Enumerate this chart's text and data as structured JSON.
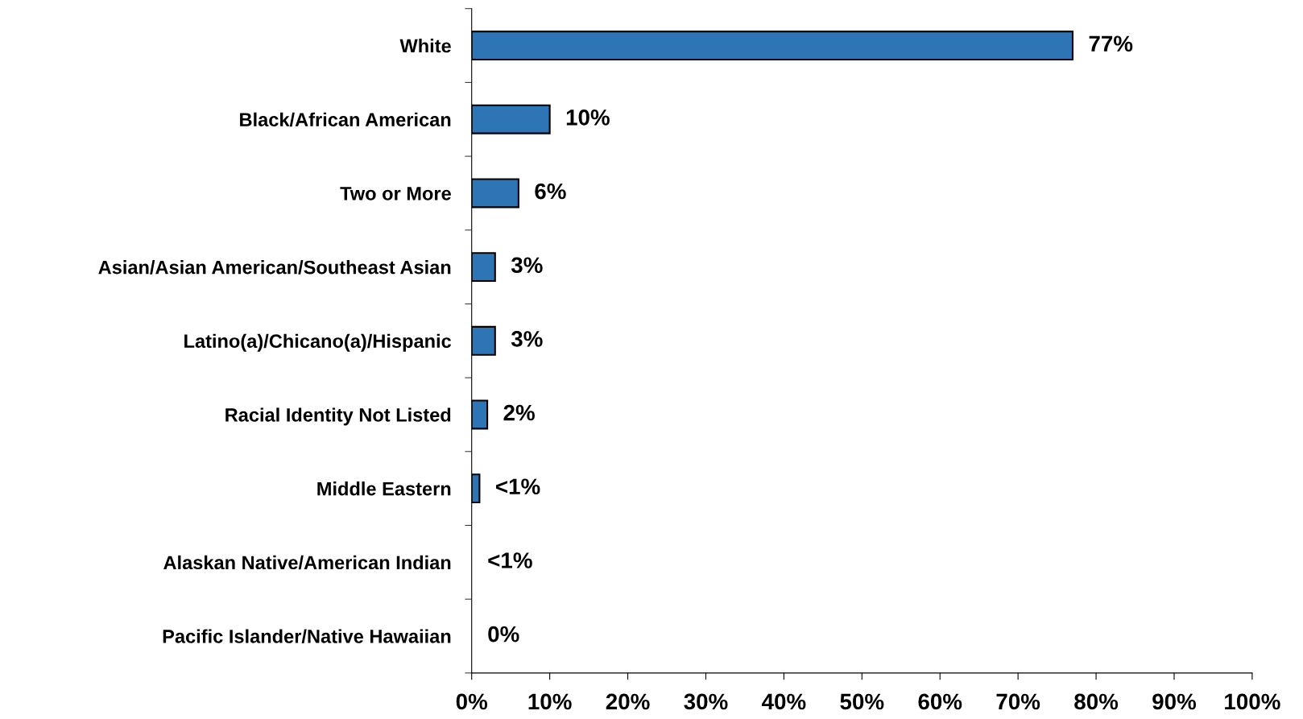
{
  "chart_data": {
    "type": "bar",
    "orientation": "horizontal",
    "categories": [
      "White",
      "Black/African American",
      "Two or More",
      "Asian/Asian American/Southeast Asian",
      "Latino(a)/Chicano(a)/Hispanic",
      "Racial Identity Not Listed",
      "Middle Eastern",
      "Alaskan Native/American Indian",
      "Pacific Islander/Native Hawaiian"
    ],
    "values": [
      77,
      10,
      6,
      3,
      3,
      2,
      1,
      0,
      0
    ],
    "value_labels": [
      "77%",
      "10%",
      "6%",
      "3%",
      "3%",
      "2%",
      "<1%",
      "<1%",
      "0%"
    ],
    "color": "#2e75b6",
    "xlim": [
      0,
      100
    ],
    "xticks": [
      {
        "value": 0,
        "label": "0%"
      },
      {
        "value": 10,
        "label": "10%"
      },
      {
        "value": 20,
        "label": "20%"
      },
      {
        "value": 30,
        "label": "30%"
      },
      {
        "value": 40,
        "label": "40%"
      },
      {
        "value": 50,
        "label": "50%"
      },
      {
        "value": 60,
        "label": "60%"
      },
      {
        "value": 70,
        "label": "70%"
      },
      {
        "value": 80,
        "label": "80%"
      },
      {
        "value": 90,
        "label": "90%"
      },
      {
        "value": 100,
        "label": "100%"
      }
    ],
    "grid": false,
    "legend": false
  }
}
